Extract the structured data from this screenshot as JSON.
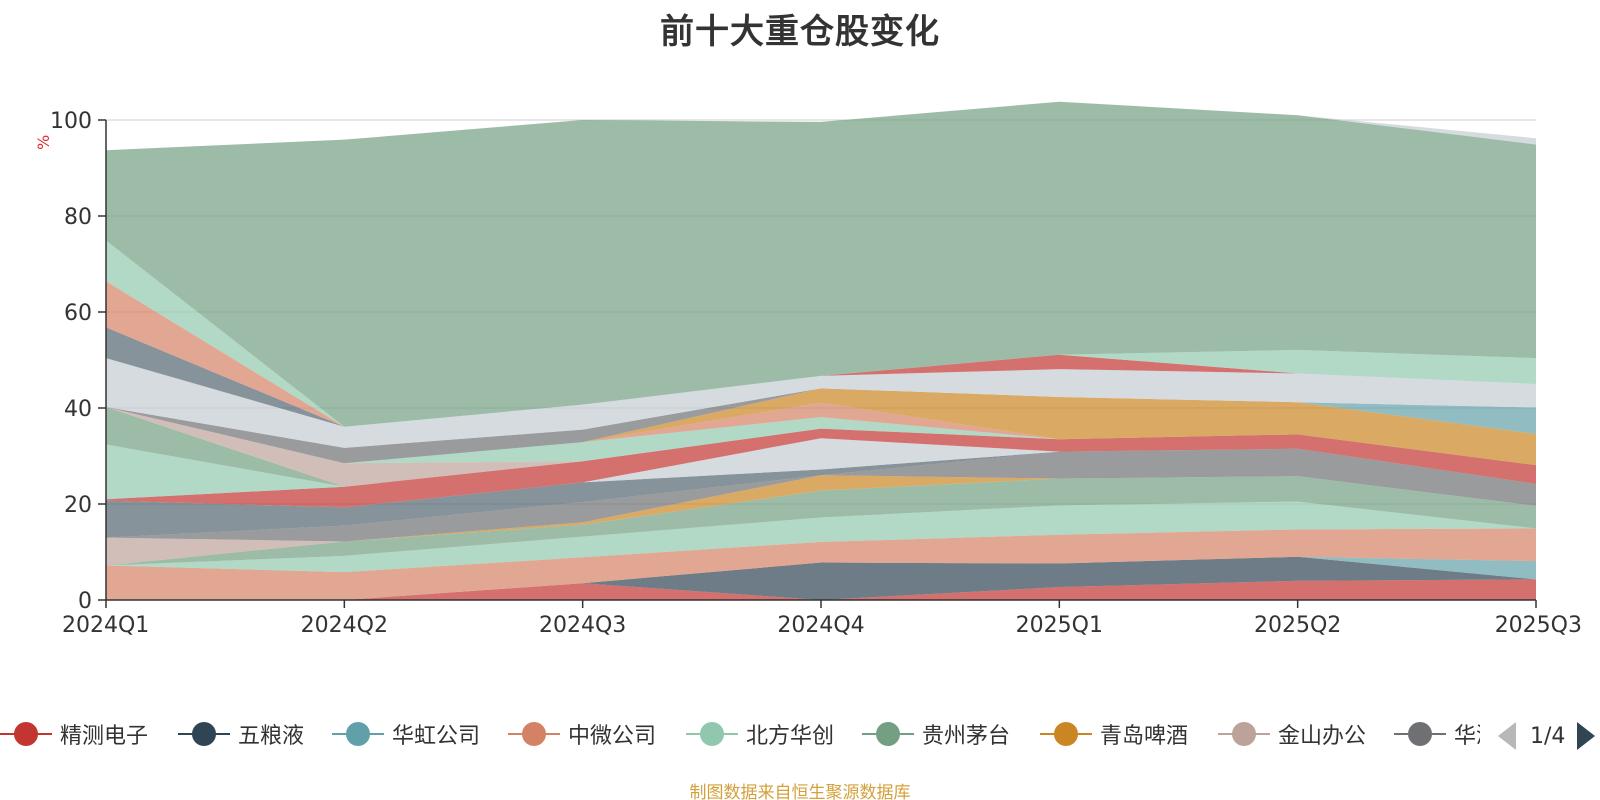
{
  "title": "前十大重仓股变化",
  "unit": "%",
  "source": "制图数据来自恒生聚源数据库",
  "legend": {
    "items": [
      {
        "label": "精测电子",
        "color": "#c23531"
      },
      {
        "label": "五粮液",
        "color": "#2f4554"
      },
      {
        "label": "华虹公司",
        "color": "#61a0a8"
      },
      {
        "label": "中微公司",
        "color": "#d48265"
      },
      {
        "label": "北方华创",
        "color": "#91c7ae"
      },
      {
        "label": "贵州茅台",
        "color": "#749f83"
      },
      {
        "label": "青岛啤酒",
        "color": "#ca8622"
      },
      {
        "label": "金山办公",
        "color": "#bda29a"
      },
      {
        "label": "华润",
        "color": "#6e7074"
      }
    ],
    "page_indicator": "1/4"
  },
  "chart_data": {
    "type": "area",
    "stacked": true,
    "title": "前十大重仓股变化",
    "ylabel": "%",
    "ylim": [
      0,
      100
    ],
    "yticks": [
      0,
      20,
      40,
      60,
      80,
      100
    ],
    "grid": true,
    "legend_position": "bottom",
    "categories": [
      "2024Q1",
      "2024Q2",
      "2024Q3",
      "2024Q4",
      "2025Q1",
      "2025Q2",
      "2025Q3"
    ],
    "series": [
      {
        "name": "精测电子",
        "color": "#c23531",
        "values": [
          0,
          0,
          3.5,
          0,
          2.7,
          4,
          4.3
        ]
      },
      {
        "name": "五粮液",
        "color": "#2f4554",
        "values": [
          0,
          0,
          0,
          7.8,
          4.9,
          5,
          0
        ]
      },
      {
        "name": "华虹公司",
        "color": "#61a0a8",
        "values": [
          0,
          0,
          0,
          0,
          0,
          0,
          3.8
        ]
      },
      {
        "name": "中微公司",
        "color": "#d48265",
        "values": [
          7.2,
          5.8,
          5.4,
          4.3,
          6,
          5.7,
          6.8
        ]
      },
      {
        "name": "北方华创",
        "color": "#91c7ae",
        "values": [
          0,
          3.4,
          4.3,
          5.1,
          6.1,
          5.8,
          0
        ]
      },
      {
        "name": "贵州茅台",
        "color": "#749f83",
        "values": [
          0,
          3,
          2.5,
          5.6,
          5.6,
          5.3,
          4.7
        ]
      },
      {
        "name": "青岛啤酒",
        "color": "#ca8622",
        "values": [
          0,
          0,
          0.5,
          3.2,
          0,
          0,
          0
        ]
      },
      {
        "name": "金山办公",
        "color": "#bda29a",
        "values": [
          5.8,
          0,
          0,
          0,
          0,
          0,
          0
        ]
      },
      {
        "name": "华润",
        "color": "#6e7074",
        "values": [
          0,
          3.3,
          4.2,
          0,
          5.6,
          5.7,
          4.6
        ]
      },
      {
        "name": "",
        "color": "#546570",
        "values": [
          7.7,
          3.8,
          4.1,
          1.2,
          0,
          0,
          0
        ]
      },
      {
        "name": "",
        "color": "#c4ccd3",
        "values": [
          0,
          0,
          0,
          6.5,
          0,
          0,
          0
        ]
      },
      {
        "name": "",
        "color": "#c23531",
        "values": [
          0.3,
          4.3,
          4.4,
          2,
          2.6,
          3,
          3.9
        ]
      },
      {
        "name": "",
        "color": "#6e7074",
        "values": [
          0,
          0,
          0,
          0,
          0,
          0,
          0
        ]
      },
      {
        "name": "",
        "color": "#91c7ae",
        "values": [
          11.4,
          0,
          0,
          0,
          0,
          0,
          0
        ]
      },
      {
        "name": "",
        "color": "#749f83",
        "values": [
          7.8,
          0,
          0,
          0,
          0,
          0,
          0
        ]
      },
      {
        "name": "",
        "color": "#bda29a",
        "values": [
          0,
          4.9,
          0,
          0,
          0,
          0,
          0
        ]
      },
      {
        "name": "",
        "color": "#91c7ae",
        "values": [
          0,
          0,
          4,
          2.4,
          0,
          0,
          0
        ]
      },
      {
        "name": "",
        "color": "#d48265",
        "values": [
          0,
          0,
          0,
          3,
          0,
          0,
          0
        ]
      },
      {
        "name": "",
        "color": "#ca8622",
        "values": [
          0,
          0,
          0,
          3,
          8.8,
          6.7,
          6.5
        ]
      },
      {
        "name": "",
        "color": "#61a0a8",
        "values": [
          0,
          0,
          0,
          0,
          0,
          0,
          5.5
        ]
      },
      {
        "name": "",
        "color": "#6e7074",
        "values": [
          0,
          3.2,
          2.6,
          0,
          0,
          0,
          0
        ]
      },
      {
        "name": "",
        "color": "#c4ccd3",
        "values": [
          10.2,
          4.4,
          5.2,
          2.6,
          5.8,
          6,
          4.9
        ]
      },
      {
        "name": "",
        "color": "#546570",
        "values": [
          6.4,
          0,
          0,
          0,
          0,
          0,
          0
        ]
      },
      {
        "name": "",
        "color": "#d48265",
        "values": [
          9.6,
          0,
          0,
          0,
          0,
          0,
          0
        ]
      },
      {
        "name": "",
        "color": "#c23531",
        "values": [
          0,
          0,
          0,
          0,
          3,
          0,
          0
        ]
      },
      {
        "name": "",
        "color": "#91c7ae",
        "values": [
          8.5,
          0,
          0,
          0,
          0,
          4.9,
          5.4
        ]
      },
      {
        "name": "",
        "color": "#749f83",
        "values": [
          18.8,
          59.8,
          59.3,
          52.9,
          52.7,
          48.9,
          44.5
        ]
      },
      {
        "name": "",
        "color": "#c4ccd3",
        "values": [
          0,
          0,
          0,
          0,
          0,
          0,
          1.3
        ]
      }
    ]
  }
}
